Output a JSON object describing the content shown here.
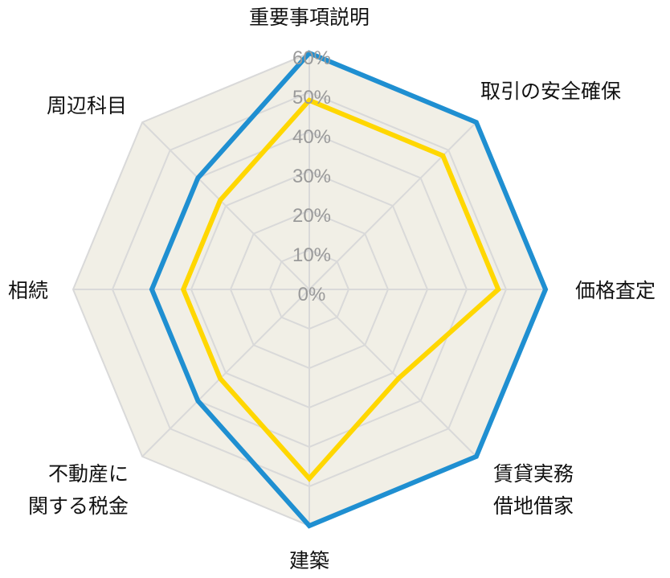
{
  "chart_data": {
    "type": "radar",
    "axes": [
      [
        "重要事項説明"
      ],
      [
        "取引の安全確保"
      ],
      [
        "価格査定"
      ],
      [
        "賃貸実務",
        "借地借家"
      ],
      [
        "建築"
      ],
      [
        "不動産に",
        "関する税金"
      ],
      [
        "相続"
      ],
      [
        "周辺科目"
      ]
    ],
    "ticks": [
      "0%",
      "10%",
      "20%",
      "30%",
      "40%",
      "50%",
      "60%"
    ],
    "range": [
      0,
      60
    ],
    "grid": true,
    "series": [
      {
        "color": "#1f8fd1",
        "values": [
          60,
          60,
          60,
          60,
          60,
          40,
          40,
          40
        ]
      },
      {
        "color": "#ffd700",
        "values": [
          48,
          48,
          48,
          32,
          48,
          32,
          32,
          32
        ]
      }
    ],
    "colors": {
      "background_fill": "#f1efe6",
      "grid_line": "#d9d9d9"
    }
  }
}
